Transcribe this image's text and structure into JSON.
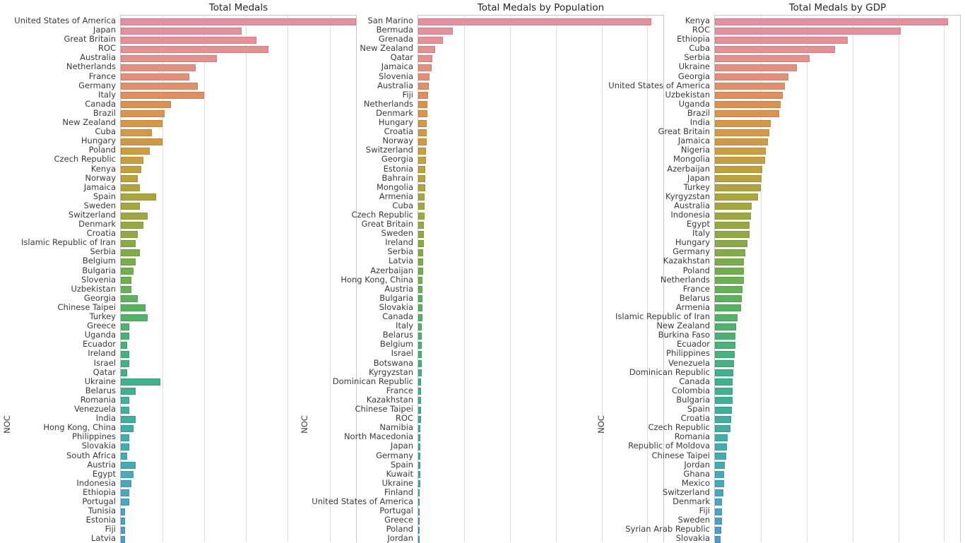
{
  "figure": {
    "background": "#ffffff",
    "grid_color": "#dddddd",
    "spine_color": "#c6c6c6",
    "text_color": "#3a3a3a",
    "title_color": "#262626"
  },
  "palette_anchors": [
    {
      "at": 0,
      "color": "#e78f9e"
    },
    {
      "at": 3,
      "color": "#e69093"
    },
    {
      "at": 6,
      "color": "#e29078"
    },
    {
      "at": 9,
      "color": "#dd9150"
    },
    {
      "at": 12,
      "color": "#d49944"
    },
    {
      "at": 15,
      "color": "#c6a03e"
    },
    {
      "at": 19,
      "color": "#aaa53c"
    },
    {
      "at": 23,
      "color": "#90aa43"
    },
    {
      "at": 27,
      "color": "#72af4c"
    },
    {
      "at": 31,
      "color": "#55b360"
    },
    {
      "at": 35,
      "color": "#46b377"
    },
    {
      "at": 39,
      "color": "#3eb28c"
    },
    {
      "at": 43,
      "color": "#3db0a0"
    },
    {
      "at": 47,
      "color": "#43abb2"
    },
    {
      "at": 51,
      "color": "#48a8c0"
    },
    {
      "at": 56,
      "color": "#4b9dd2"
    }
  ],
  "chart_data": [
    {
      "type": "bar",
      "orientation": "horizontal",
      "title": "Total Medals",
      "ylabel": "NOC",
      "xlabel": "",
      "units": "total medal count (x tick labels cut off at bottom of screenshot)",
      "xlim": [
        0,
        113
      ],
      "grid": true,
      "gridline_values": [
        20,
        40,
        60,
        80,
        100
      ],
      "categories": [
        "United States of America",
        "Japan",
        "Great Britain",
        "ROC",
        "Australia",
        "Netherlands",
        "France",
        "Germany",
        "Italy",
        "Canada",
        "Brazil",
        "New Zealand",
        "Cuba",
        "Hungary",
        "Poland",
        "Czech Republic",
        "Kenya",
        "Norway",
        "Jamaica",
        "Spain",
        "Sweden",
        "Switzerland",
        "Denmark",
        "Croatia",
        "Islamic Republic of Iran",
        "Serbia",
        "Belgium",
        "Bulgaria",
        "Slovenia",
        "Uzbekistan",
        "Georgia",
        "Chinese Taipei",
        "Turkey",
        "Greece",
        "Uganda",
        "Ecuador",
        "Ireland",
        "Israel",
        "Qatar",
        "Ukraine",
        "Belarus",
        "Romania",
        "Venezuela",
        "India",
        "Hong Kong, China",
        "Philippines",
        "Slovakia",
        "South Africa",
        "Austria",
        "Egypt",
        "Indonesia",
        "Ethiopia",
        "Portugal",
        "Tunisia",
        "Estonia",
        "Fiji",
        "Latvia"
      ],
      "values": [
        113,
        58,
        65,
        71,
        46,
        36,
        33,
        37,
        40,
        24,
        21,
        20,
        15,
        20,
        14,
        11,
        10,
        8,
        9,
        17,
        9,
        13,
        11,
        8,
        7,
        9,
        7,
        6,
        5,
        5,
        8,
        12,
        13,
        4,
        4,
        3,
        4,
        4,
        3,
        19,
        7,
        4,
        4,
        7,
        6,
        4,
        4,
        3,
        7,
        6,
        5,
        4,
        4,
        2,
        2,
        2,
        2
      ]
    },
    {
      "type": "bar",
      "orientation": "horizontal",
      "title": "Total Medals by Population",
      "ylabel": "NOC",
      "xlabel": "",
      "units": "relative value, percent of x-axis span (tick labels cut off at bottom of screenshot)",
      "xlim": [
        0,
        100
      ],
      "grid": true,
      "gridline_values": [
        18.7,
        37.3,
        56.0,
        74.6,
        93.2
      ],
      "categories": [
        "San Marino",
        "Bermuda",
        "Grenada",
        "New Zealand",
        "Qatar",
        "Jamaica",
        "Slovenia",
        "Australia",
        "Fiji",
        "Netherlands",
        "Denmark",
        "Hungary",
        "Croatia",
        "Norway",
        "Switzerland",
        "Georgia",
        "Estonia",
        "Bahrain",
        "Mongolia",
        "Armenia",
        "Cuba",
        "Czech Republic",
        "Great Britain",
        "Sweden",
        "Ireland",
        "Serbia",
        "Latvia",
        "Azerbaijan",
        "Hong Kong, China",
        "Austria",
        "Bulgaria",
        "Slovakia",
        "Canada",
        "Italy",
        "Belarus",
        "Belgium",
        "Israel",
        "Botswana",
        "Kyrgyzstan",
        "Dominican Republic",
        "France",
        "Kazakhstan",
        "Chinese Taipei",
        "ROC",
        "Namibia",
        "North Macedonia",
        "Japan",
        "Germany",
        "Spain",
        "Kuwait",
        "Ukraine",
        "Finland",
        "United States of America",
        "Portugal",
        "Greece",
        "Poland",
        "Jordan"
      ],
      "values": [
        95,
        14,
        10.2,
        7,
        5.7,
        5.6,
        4.5,
        4.3,
        4,
        3.8,
        3.7,
        3.6,
        3.5,
        3.4,
        3.3,
        3.2,
        3,
        2.9,
        2.8,
        2.7,
        2.6,
        2.5,
        2.4,
        2.3,
        2.2,
        2.1,
        2,
        1.9,
        1.85,
        1.8,
        1.7,
        1.65,
        1.6,
        1.55,
        1.5,
        1.45,
        1.4,
        1.35,
        1.3,
        1.25,
        1.2,
        1.15,
        1.1,
        1.05,
        1,
        0.95,
        0.9,
        0.85,
        0.8,
        0.78,
        0.75,
        0.72,
        0.7,
        0.68,
        0.65,
        0.62,
        0.6
      ]
    },
    {
      "type": "bar",
      "orientation": "horizontal",
      "title": "Total Medals by GDP",
      "ylabel": "NOC",
      "xlabel": "",
      "units": "relative value, percent of x-axis span (tick labels cut off at bottom of screenshot)",
      "xlim": [
        0,
        100
      ],
      "grid": true,
      "gridline_values": [
        18.7,
        37.3,
        56.0,
        74.6,
        93.2
      ],
      "categories": [
        "Kenya",
        "ROC",
        "Ethiopia",
        "Cuba",
        "Serbia",
        "Ukraine",
        "Georgia",
        "United States of America",
        "Uzbekistan",
        "Uganda",
        "Brazil",
        "India",
        "Great Britain",
        "Jamaica",
        "Nigeria",
        "Mongolia",
        "Azerbaijan",
        "Japan",
        "Turkey",
        "Kyrgyzstan",
        "Australia",
        "Indonesia",
        "Egypt",
        "Italy",
        "Hungary",
        "Germany",
        "Kazakhstan",
        "Poland",
        "Netherlands",
        "France",
        "Belarus",
        "Armenia",
        "Islamic Republic of Iran",
        "New Zealand",
        "Burkina Faso",
        "Ecuador",
        "Philippines",
        "Venezuela",
        "Dominican Republic",
        "Canada",
        "Colombia",
        "Bulgaria",
        "Spain",
        "Croatia",
        "Czech Republic",
        "Romania",
        "Republic of Moldova",
        "Chinese Taipei",
        "Jordan",
        "Ghana",
        "Mexico",
        "Switzerland",
        "Denmark",
        "Fiji",
        "Sweden",
        "Syrian Arab Republic",
        "Slovakia"
      ],
      "values": [
        95,
        75.7,
        54.2,
        49,
        38.7,
        33.3,
        30.1,
        28.4,
        27.6,
        26.9,
        26.1,
        22.9,
        22.1,
        21.5,
        20.7,
        20.5,
        19.2,
        19.1,
        18.6,
        17.5,
        14.9,
        14.8,
        14.1,
        14,
        13.2,
        12.3,
        11.9,
        11.8,
        11.7,
        11.1,
        10.9,
        10.6,
        9.3,
        8.6,
        8.35,
        8.3,
        8,
        7.65,
        7.6,
        7.2,
        7.15,
        7.1,
        6.8,
        6.7,
        6.3,
        5.1,
        5,
        4.6,
        3.9,
        3.85,
        3.7,
        3.4,
        2.9,
        2.85,
        2.8,
        2.5,
        2.4
      ]
    }
  ]
}
